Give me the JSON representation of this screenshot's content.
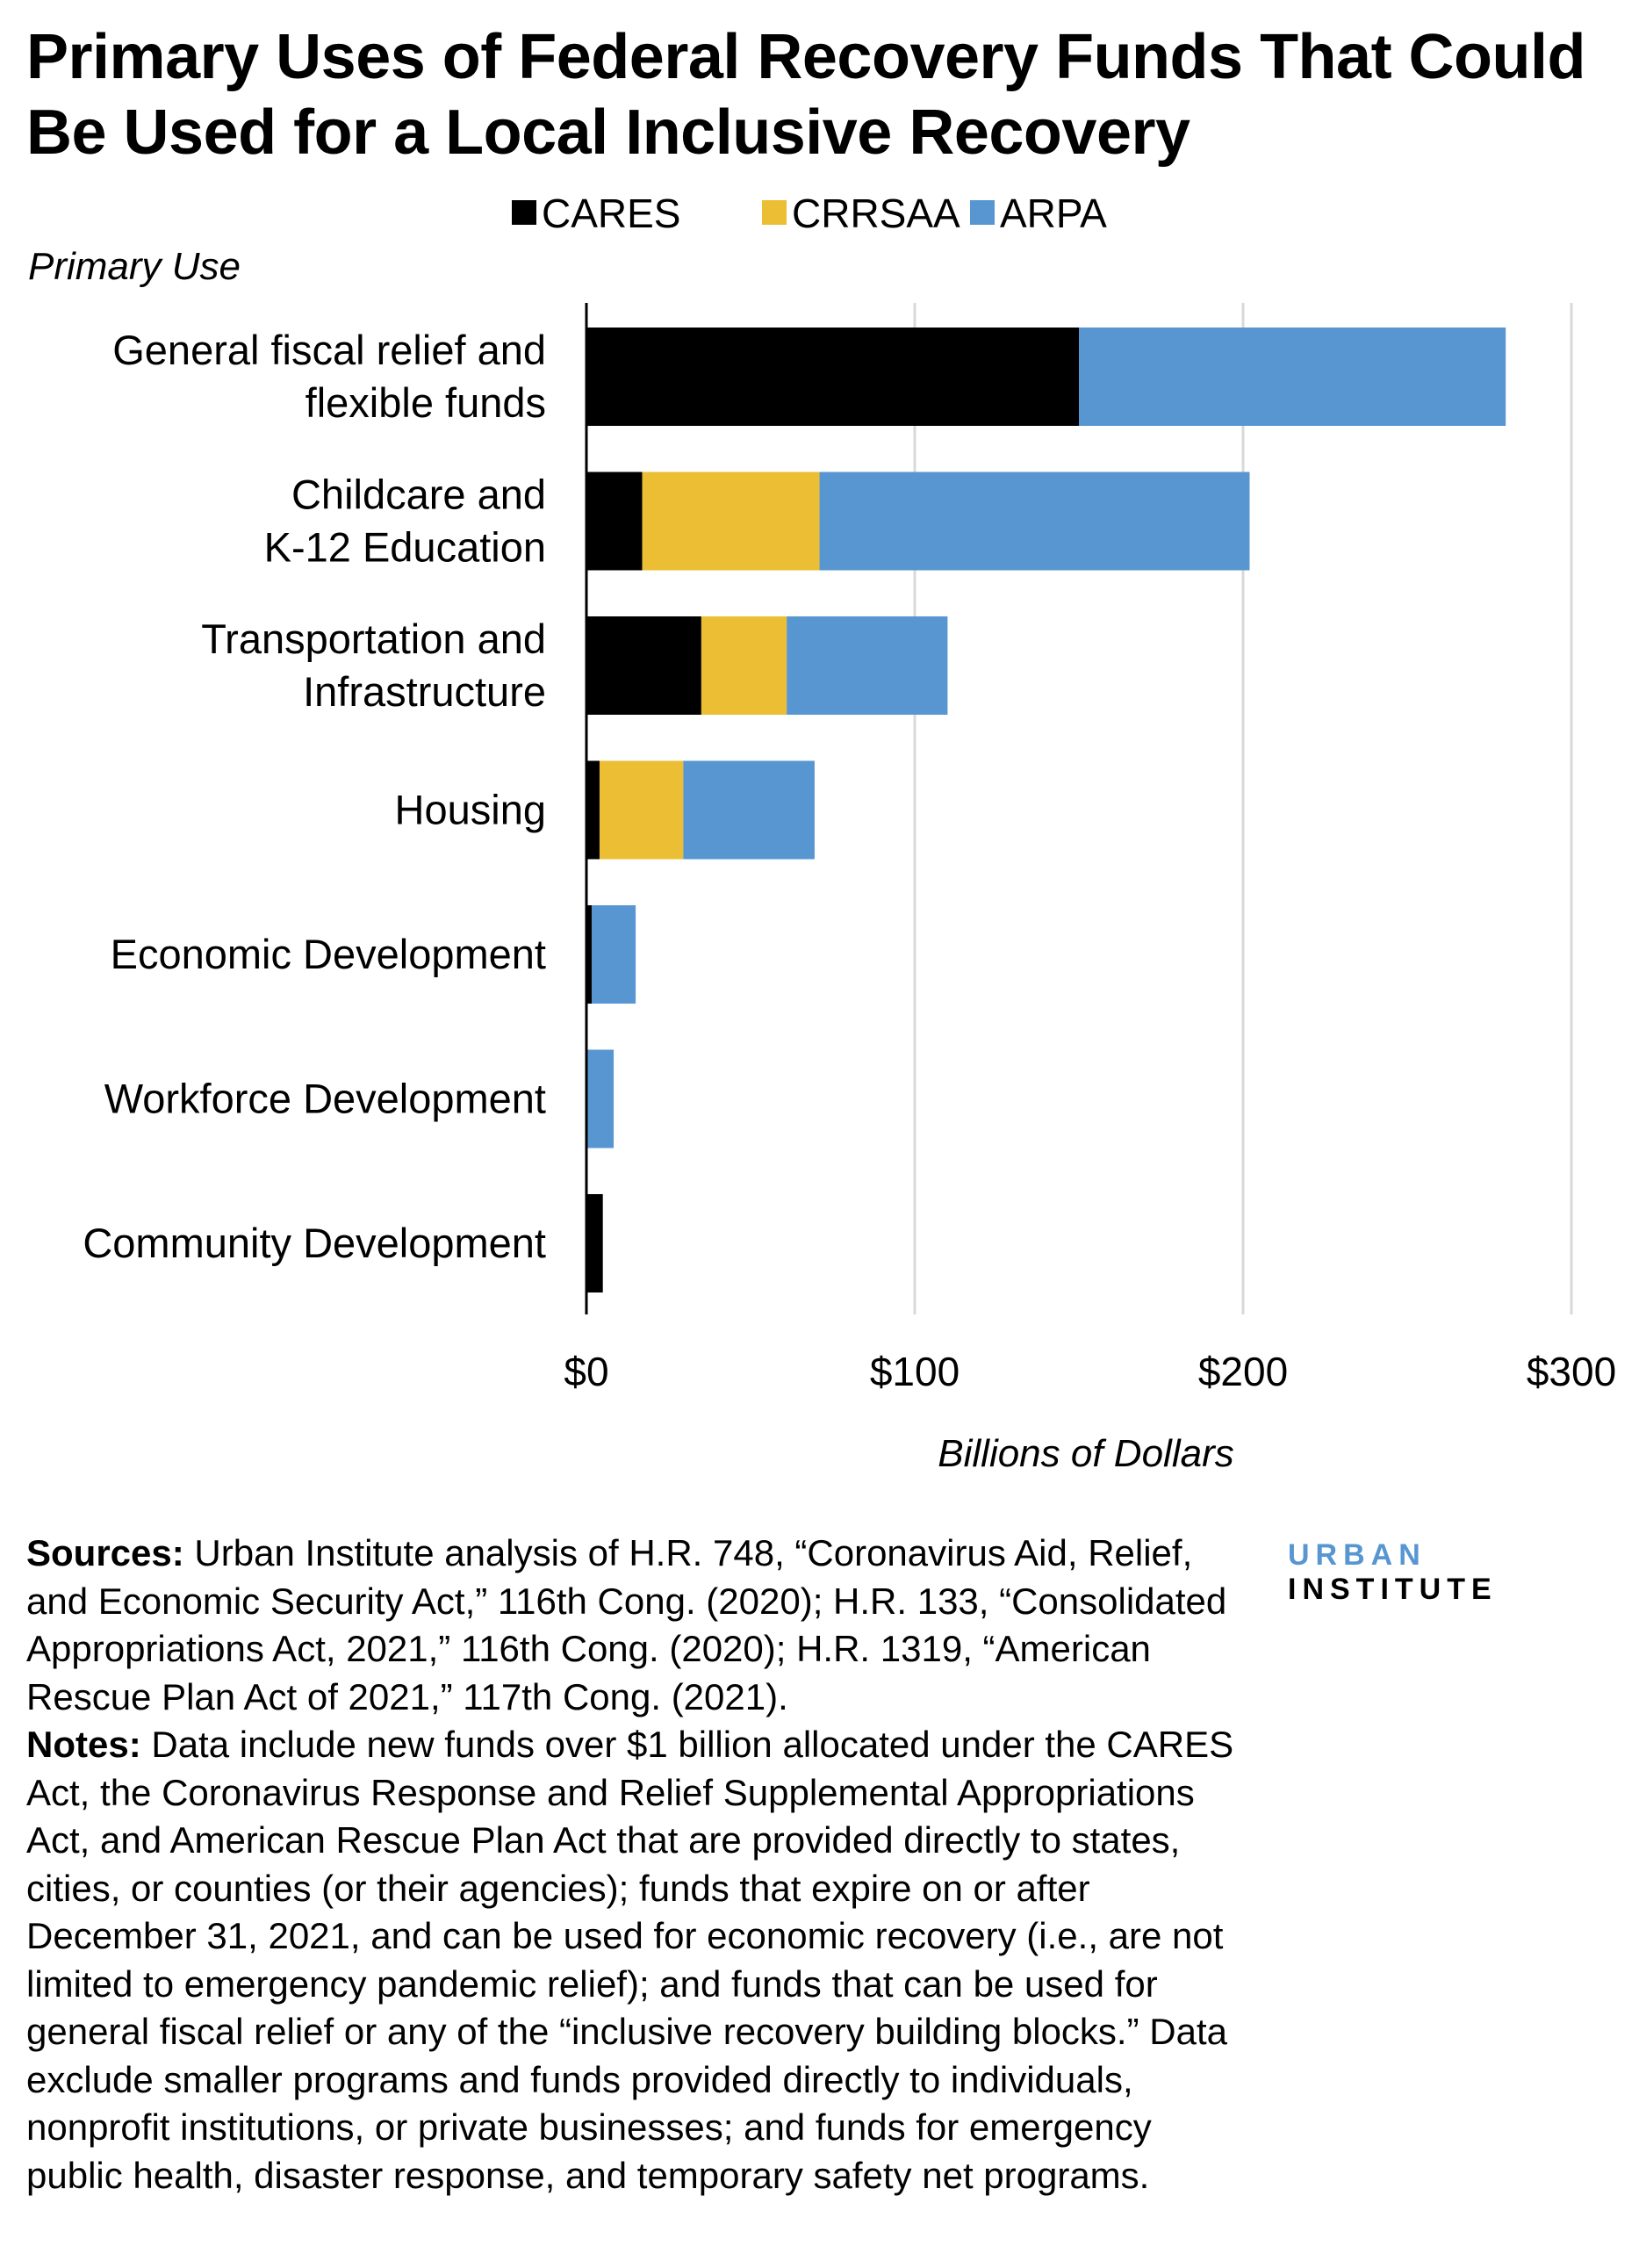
{
  "title": "Primary Uses of Federal Recovery Funds That Could Be Used for a Local Inclusive Recovery",
  "chart_data": {
    "type": "bar",
    "orientation": "horizontal",
    "stacked": true,
    "ylabel": "Primary Use",
    "xlabel": "Billions of Dollars",
    "xlim": [
      0,
      300
    ],
    "xticks": [
      "$0",
      "$100",
      "$200",
      "$300"
    ],
    "tick_values": [
      0,
      100,
      200,
      300
    ],
    "grid": "vertical",
    "legend_position": "top",
    "categories": [
      [
        "General fiscal relief and",
        "flexible funds"
      ],
      [
        "Childcare and",
        "K-12 Education"
      ],
      [
        "Transportation and",
        "Infrastructure"
      ],
      [
        "Housing"
      ],
      [
        "Economic Development"
      ],
      [
        "Workforce Development"
      ],
      [
        "Community Development"
      ]
    ],
    "series": [
      {
        "name": "CARES",
        "color": "#000000",
        "values": [
          150,
          17,
          35,
          4,
          1.6,
          0,
          5
        ]
      },
      {
        "name": "CRRSAA",
        "color": "#ecbe33",
        "values": [
          0,
          54,
          26,
          25.5,
          0,
          0,
          0
        ]
      },
      {
        "name": "ARPA",
        "color": "#5796d1",
        "values": [
          130,
          131,
          49,
          40,
          13.4,
          8.3,
          0
        ]
      }
    ]
  },
  "notes": {
    "sources_label": "Sources:",
    "sources_text": " Urban Institute analysis of H.R. 748, “Coronavirus Aid, Relief, and Economic Security Act,” 116th Cong. (2020); H.R. 133, “Consolidated Appropriations Act, 2021,” 116th Cong. (2020); H.R. 1319, “American Rescue Plan Act of 2021,” 117th Cong. (2021).",
    "notes_label": "Notes:",
    "notes_text": " Data include new funds over $1 billion allocated under the CARES Act, the Coronavirus Response and Relief Supplemental Appropriations Act, and American Rescue Plan Act that are provided directly to states, cities, or counties (or their agencies); funds that expire on or after December 31, 2021, and can be used for economic recovery (i.e., are not limited to emergency pandemic relief); and funds that can be used for general fiscal relief or any of the “inclusive recovery building blocks.” Data exclude smaller programs and funds provided directly to individuals, nonprofit institutions, or private businesses; and funds for emergency public health, disaster response, and temporary safety net programs."
  },
  "logo": {
    "part1": "URBAN",
    "part2": "INSTITUTE"
  }
}
